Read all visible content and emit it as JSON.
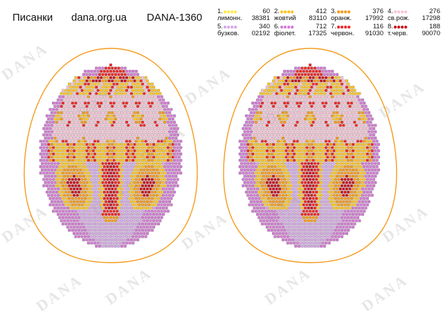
{
  "header": {
    "title": "Писанки",
    "site": "dana.org.ua",
    "code": "DANA-1360"
  },
  "legend": [
    {
      "num": "1.",
      "count": "60",
      "name": "лимонн.",
      "code": "38381",
      "color": "#ffe94a"
    },
    {
      "num": "2.",
      "count": "412",
      "name": "жовтий",
      "code": "83110",
      "color": "#ffc526"
    },
    {
      "num": "3.",
      "count": "376",
      "name": "оранж.",
      "code": "17992",
      "color": "#f59a1c"
    },
    {
      "num": "4.",
      "count": "276",
      "name": "св.рож.",
      "code": "17298",
      "color": "#f9c6d8"
    },
    {
      "num": "5.",
      "count": "340",
      "name": "бузков.",
      "code": "02192",
      "color": "#d6a9e6"
    },
    {
      "num": "6.",
      "count": "712",
      "name": "фіолет.",
      "code": "17325",
      "color": "#d57bd6"
    },
    {
      "num": "7.",
      "count": "116",
      "name": "червон.",
      "code": "91030",
      "color": "#ee2a2a"
    },
    {
      "num": "8.",
      "count": "188",
      "name": "т.черв.",
      "code": "90070",
      "color": "#c81623"
    }
  ],
  "watermark": "DANA",
  "outline_color": "#f59a1c"
}
